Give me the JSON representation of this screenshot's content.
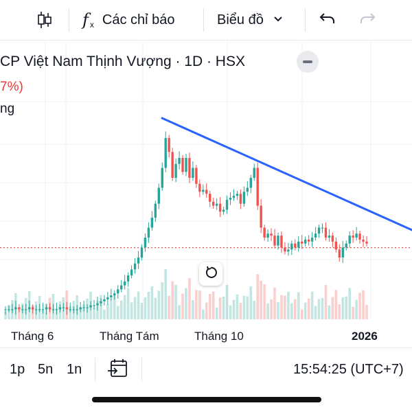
{
  "toolbar": {
    "indicators_label": "Các chỉ báo",
    "chart_type_label": "Biểu đồ"
  },
  "header": {
    "title": "CP Việt Nam Thịnh Vượng · 1D · HSX",
    "change_pct": "7%)",
    "partial_label": "ng"
  },
  "colors": {
    "up": "#26a69a",
    "down": "#ef5350",
    "trendline": "#2962ff",
    "price_line": "#e53935",
    "grid": "#eef0f4"
  },
  "chart_data": {
    "type": "candlestick",
    "x_labels": [
      "Tháng 6",
      "Tháng Tám",
      "Tháng 10",
      "2026"
    ],
    "title": "CP Việt Nam Thịnh Vượng · 1D · HSX",
    "ylim": [
      0,
      100
    ],
    "close": [
      4,
      4,
      4,
      5,
      4,
      4,
      4,
      5,
      4,
      4,
      4,
      4,
      5,
      4,
      4,
      4,
      5,
      5,
      4,
      4,
      4,
      4,
      5,
      5,
      5,
      6,
      6,
      7,
      8,
      9,
      10,
      11,
      12,
      14,
      16,
      18,
      21,
      24,
      27,
      30,
      35,
      40,
      45,
      50,
      57,
      65,
      75,
      90,
      83,
      70,
      77,
      80,
      73,
      80,
      70,
      75,
      67,
      63,
      64,
      62,
      58,
      56,
      57,
      53,
      54,
      59,
      60,
      61,
      62,
      57,
      63,
      65,
      70,
      75,
      56,
      45,
      40,
      42,
      41,
      36,
      41,
      35,
      33,
      34,
      37,
      35,
      38,
      37,
      39,
      38,
      40,
      42,
      45,
      45,
      40,
      41,
      38,
      34,
      30,
      35,
      37,
      41,
      40,
      42,
      39,
      38,
      37
    ],
    "annotations": {
      "trendline": "descending from August peak to end of visible range",
      "last_price_line": "dotted red horizontal"
    }
  },
  "bottom": {
    "intervals": [
      "1p",
      "5n",
      "1n"
    ],
    "time": "15:54:25 (UTC+7)"
  }
}
